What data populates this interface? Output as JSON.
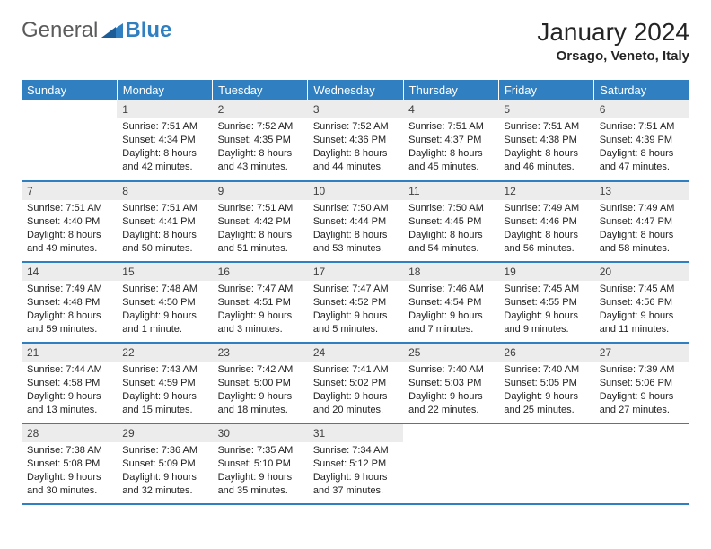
{
  "logo": {
    "text1": "General",
    "text2": "Blue"
  },
  "title": "January 2024",
  "location": "Orsago, Veneto, Italy",
  "colors": {
    "header_bg": "#2f7fc1",
    "header_text": "#ffffff",
    "daynum_bg": "#ececec",
    "row_border": "#2f7fc1",
    "body_text": "#222222"
  },
  "weekdays": [
    "Sunday",
    "Monday",
    "Tuesday",
    "Wednesday",
    "Thursday",
    "Friday",
    "Saturday"
  ],
  "weeks": [
    [
      {
        "n": "",
        "sr": "",
        "ss": "",
        "dl": ""
      },
      {
        "n": "1",
        "sr": "Sunrise: 7:51 AM",
        "ss": "Sunset: 4:34 PM",
        "dl": "Daylight: 8 hours and 42 minutes."
      },
      {
        "n": "2",
        "sr": "Sunrise: 7:52 AM",
        "ss": "Sunset: 4:35 PM",
        "dl": "Daylight: 8 hours and 43 minutes."
      },
      {
        "n": "3",
        "sr": "Sunrise: 7:52 AM",
        "ss": "Sunset: 4:36 PM",
        "dl": "Daylight: 8 hours and 44 minutes."
      },
      {
        "n": "4",
        "sr": "Sunrise: 7:51 AM",
        "ss": "Sunset: 4:37 PM",
        "dl": "Daylight: 8 hours and 45 minutes."
      },
      {
        "n": "5",
        "sr": "Sunrise: 7:51 AM",
        "ss": "Sunset: 4:38 PM",
        "dl": "Daylight: 8 hours and 46 minutes."
      },
      {
        "n": "6",
        "sr": "Sunrise: 7:51 AM",
        "ss": "Sunset: 4:39 PM",
        "dl": "Daylight: 8 hours and 47 minutes."
      }
    ],
    [
      {
        "n": "7",
        "sr": "Sunrise: 7:51 AM",
        "ss": "Sunset: 4:40 PM",
        "dl": "Daylight: 8 hours and 49 minutes."
      },
      {
        "n": "8",
        "sr": "Sunrise: 7:51 AM",
        "ss": "Sunset: 4:41 PM",
        "dl": "Daylight: 8 hours and 50 minutes."
      },
      {
        "n": "9",
        "sr": "Sunrise: 7:51 AM",
        "ss": "Sunset: 4:42 PM",
        "dl": "Daylight: 8 hours and 51 minutes."
      },
      {
        "n": "10",
        "sr": "Sunrise: 7:50 AM",
        "ss": "Sunset: 4:44 PM",
        "dl": "Daylight: 8 hours and 53 minutes."
      },
      {
        "n": "11",
        "sr": "Sunrise: 7:50 AM",
        "ss": "Sunset: 4:45 PM",
        "dl": "Daylight: 8 hours and 54 minutes."
      },
      {
        "n": "12",
        "sr": "Sunrise: 7:49 AM",
        "ss": "Sunset: 4:46 PM",
        "dl": "Daylight: 8 hours and 56 minutes."
      },
      {
        "n": "13",
        "sr": "Sunrise: 7:49 AM",
        "ss": "Sunset: 4:47 PM",
        "dl": "Daylight: 8 hours and 58 minutes."
      }
    ],
    [
      {
        "n": "14",
        "sr": "Sunrise: 7:49 AM",
        "ss": "Sunset: 4:48 PM",
        "dl": "Daylight: 8 hours and 59 minutes."
      },
      {
        "n": "15",
        "sr": "Sunrise: 7:48 AM",
        "ss": "Sunset: 4:50 PM",
        "dl": "Daylight: 9 hours and 1 minute."
      },
      {
        "n": "16",
        "sr": "Sunrise: 7:47 AM",
        "ss": "Sunset: 4:51 PM",
        "dl": "Daylight: 9 hours and 3 minutes."
      },
      {
        "n": "17",
        "sr": "Sunrise: 7:47 AM",
        "ss": "Sunset: 4:52 PM",
        "dl": "Daylight: 9 hours and 5 minutes."
      },
      {
        "n": "18",
        "sr": "Sunrise: 7:46 AM",
        "ss": "Sunset: 4:54 PM",
        "dl": "Daylight: 9 hours and 7 minutes."
      },
      {
        "n": "19",
        "sr": "Sunrise: 7:45 AM",
        "ss": "Sunset: 4:55 PM",
        "dl": "Daylight: 9 hours and 9 minutes."
      },
      {
        "n": "20",
        "sr": "Sunrise: 7:45 AM",
        "ss": "Sunset: 4:56 PM",
        "dl": "Daylight: 9 hours and 11 minutes."
      }
    ],
    [
      {
        "n": "21",
        "sr": "Sunrise: 7:44 AM",
        "ss": "Sunset: 4:58 PM",
        "dl": "Daylight: 9 hours and 13 minutes."
      },
      {
        "n": "22",
        "sr": "Sunrise: 7:43 AM",
        "ss": "Sunset: 4:59 PM",
        "dl": "Daylight: 9 hours and 15 minutes."
      },
      {
        "n": "23",
        "sr": "Sunrise: 7:42 AM",
        "ss": "Sunset: 5:00 PM",
        "dl": "Daylight: 9 hours and 18 minutes."
      },
      {
        "n": "24",
        "sr": "Sunrise: 7:41 AM",
        "ss": "Sunset: 5:02 PM",
        "dl": "Daylight: 9 hours and 20 minutes."
      },
      {
        "n": "25",
        "sr": "Sunrise: 7:40 AM",
        "ss": "Sunset: 5:03 PM",
        "dl": "Daylight: 9 hours and 22 minutes."
      },
      {
        "n": "26",
        "sr": "Sunrise: 7:40 AM",
        "ss": "Sunset: 5:05 PM",
        "dl": "Daylight: 9 hours and 25 minutes."
      },
      {
        "n": "27",
        "sr": "Sunrise: 7:39 AM",
        "ss": "Sunset: 5:06 PM",
        "dl": "Daylight: 9 hours and 27 minutes."
      }
    ],
    [
      {
        "n": "28",
        "sr": "Sunrise: 7:38 AM",
        "ss": "Sunset: 5:08 PM",
        "dl": "Daylight: 9 hours and 30 minutes."
      },
      {
        "n": "29",
        "sr": "Sunrise: 7:36 AM",
        "ss": "Sunset: 5:09 PM",
        "dl": "Daylight: 9 hours and 32 minutes."
      },
      {
        "n": "30",
        "sr": "Sunrise: 7:35 AM",
        "ss": "Sunset: 5:10 PM",
        "dl": "Daylight: 9 hours and 35 minutes."
      },
      {
        "n": "31",
        "sr": "Sunrise: 7:34 AM",
        "ss": "Sunset: 5:12 PM",
        "dl": "Daylight: 9 hours and 37 minutes."
      },
      {
        "n": "",
        "sr": "",
        "ss": "",
        "dl": ""
      },
      {
        "n": "",
        "sr": "",
        "ss": "",
        "dl": ""
      },
      {
        "n": "",
        "sr": "",
        "ss": "",
        "dl": ""
      }
    ]
  ]
}
